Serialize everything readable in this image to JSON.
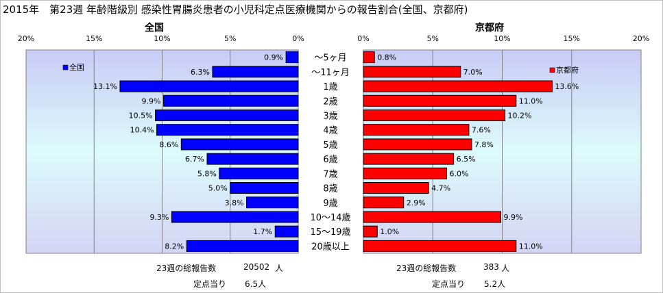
{
  "title": "2015年　第23週 年齢階級別 感染性胃腸炎患者の小児科定点医療機関からの報告割合(全国、京都府)",
  "chart_data": [
    {
      "type": "bar",
      "orientation": "horizontal",
      "panel": "left",
      "panel_title": "全国",
      "legend": "全国",
      "legend_position": "top-left",
      "color": "#0000ff",
      "ticks": [
        "20%",
        "15%",
        "10%",
        "5%",
        "0%"
      ],
      "xlim": [
        0,
        20
      ],
      "reversed": true,
      "categories": [
        "～5ヶ月",
        "～11ヶ月",
        "1歳",
        "2歳",
        "3歳",
        "4歳",
        "5歳",
        "6歳",
        "7歳",
        "8歳",
        "9歳",
        "10～14歳",
        "15～19歳",
        "20歳以上"
      ],
      "values": [
        0.9,
        6.3,
        13.1,
        9.9,
        10.5,
        10.4,
        8.6,
        6.7,
        5.8,
        5.0,
        3.8,
        9.3,
        1.7,
        8.2
      ],
      "value_labels": [
        "0.9%",
        "6.3%",
        "13.1%",
        "9.9%",
        "10.5%",
        "10.4%",
        "8.6%",
        "6.7%",
        "5.8%",
        "5.0%",
        "3.8%",
        "9.3%",
        "1.7%",
        "8.2%"
      ],
      "grid": true
    },
    {
      "type": "bar",
      "orientation": "horizontal",
      "panel": "right",
      "panel_title": "京都府",
      "legend": "京都府",
      "legend_position": "top-right",
      "color": "#ff0000",
      "ticks": [
        "0%",
        "5%",
        "10%",
        "15%",
        "20%"
      ],
      "xlim": [
        0,
        20
      ],
      "reversed": false,
      "categories": [
        "～5ヶ月",
        "～11ヶ月",
        "1歳",
        "2歳",
        "3歳",
        "4歳",
        "5歳",
        "6歳",
        "7歳",
        "8歳",
        "9歳",
        "10～14歳",
        "15～19歳",
        "20歳以上"
      ],
      "values": [
        0.8,
        7.0,
        13.6,
        11.0,
        10.2,
        7.6,
        7.8,
        6.5,
        6.0,
        4.7,
        2.9,
        9.9,
        1.0,
        11.0
      ],
      "value_labels": [
        "0.8%",
        "7.0%",
        "13.6%",
        "11.0%",
        "10.2%",
        "7.6%",
        "7.8%",
        "6.5%",
        "6.0%",
        "4.7%",
        "2.9%",
        "9.9%",
        "1.0%",
        "11.0%"
      ],
      "grid": true
    }
  ],
  "footer": {
    "national_total_label": "23週の総報告数",
    "national_total_value": "20502",
    "national_total_unit": "人",
    "national_per_label": "定点当り",
    "national_per_value": "6.5人",
    "kyoto_total_label": "23週の総報告数",
    "kyoto_total_value": "383",
    "kyoto_total_unit": "人",
    "kyoto_per_label": "定点当り",
    "kyoto_per_value": "5.2人"
  }
}
